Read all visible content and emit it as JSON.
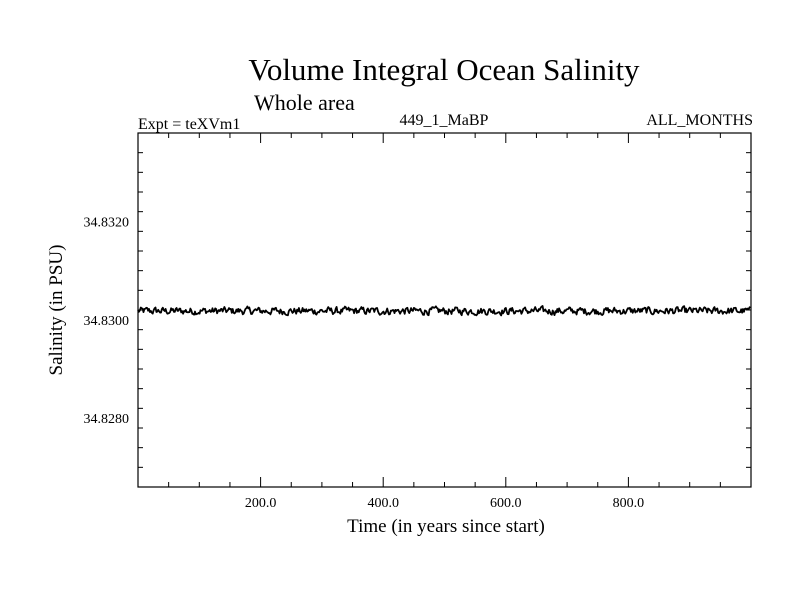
{
  "header": {
    "title": "Volume Integral Ocean Salinity",
    "subtitle": "Whole area",
    "expt": "Expt = teXVm1",
    "run_id": "449_1_MaBP",
    "period": "ALL_MONTHS"
  },
  "chart_data": {
    "type": "line",
    "title": "Volume Integral Ocean Salinity",
    "subtitle": "Whole area",
    "xlabel": "Time (in years since start)",
    "ylabel": "Salinity (in PSU)",
    "xlim": [
      0,
      1000
    ],
    "ylim": [
      34.8266,
      34.8338
    ],
    "x_ticks": [
      200,
      400,
      600,
      800
    ],
    "x_tick_labels": [
      "200.0",
      "400.0",
      "600.0",
      "800.0"
    ],
    "y_ticks": [
      34.828,
      34.83,
      34.832
    ],
    "y_tick_labels": [
      "34.8280",
      "34.8300",
      "34.8320"
    ],
    "grid": false,
    "series": [
      {
        "x_start": 0,
        "x_end": 1000,
        "mean": 34.83018,
        "noise_amplitude": 0.00012,
        "color": "#000000"
      }
    ]
  }
}
